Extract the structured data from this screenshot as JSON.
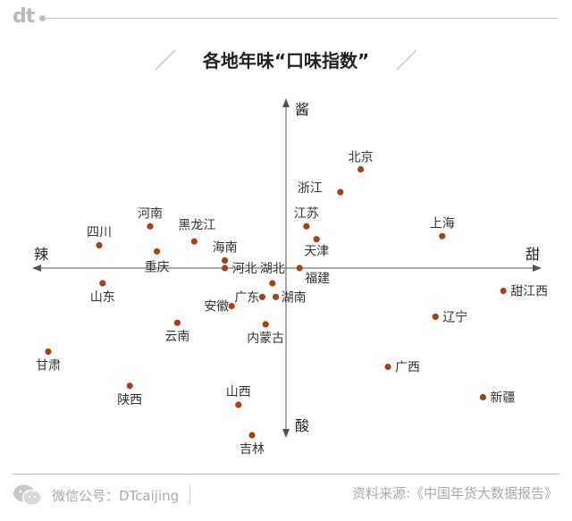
{
  "brand": "dt",
  "footer": {
    "left": "微信公号：DTcaijing",
    "right": "资料来源:《中国年货大数据报告》"
  },
  "chart_data": {
    "type": "scatter",
    "title": "各地年味“口味指数”",
    "axes": {
      "left": "辣",
      "right": "甜",
      "top": "酱",
      "bottom": "酸"
    },
    "grid": false,
    "points": [
      {
        "name": "北京",
        "x": 1.1,
        "y": 1.3
      },
      {
        "name": "浙江",
        "x": 0.8,
        "y": 1.0
      },
      {
        "name": "江苏",
        "x": 0.3,
        "y": 0.55
      },
      {
        "name": "天津",
        "x": 0.45,
        "y": 0.38
      },
      {
        "name": "上海",
        "x": 2.3,
        "y": 0.42
      },
      {
        "name": "甜江西",
        "x": 3.2,
        "y": -0.3
      },
      {
        "name": "辽宁",
        "x": 2.2,
        "y": -0.64
      },
      {
        "name": "广西",
        "x": 1.5,
        "y": -1.3
      },
      {
        "name": "新疆",
        "x": 2.9,
        "y": -1.7
      },
      {
        "name": "河南",
        "x": -2.0,
        "y": 0.55
      },
      {
        "name": "四川",
        "x": -2.75,
        "y": 0.3
      },
      {
        "name": "黑龙江",
        "x": -1.35,
        "y": 0.35
      },
      {
        "name": "重庆",
        "x": -1.9,
        "y": 0.22
      },
      {
        "name": "海南",
        "x": -0.9,
        "y": 0.1
      },
      {
        "name": "河北",
        "x": -0.9,
        "y": 0.0
      },
      {
        "name": "湖北",
        "x": -0.2,
        "y": -0.2
      },
      {
        "name": "福建",
        "x": 0.2,
        "y": 0.0
      },
      {
        "name": "山东",
        "x": -2.7,
        "y": -0.2
      },
      {
        "name": "广东",
        "x": -0.35,
        "y": -0.38
      },
      {
        "name": "湖南",
        "x": -0.15,
        "y": -0.38
      },
      {
        "name": "安徽",
        "x": -0.8,
        "y": -0.5
      },
      {
        "name": "云南",
        "x": -1.6,
        "y": -0.72
      },
      {
        "name": "内蒙古",
        "x": -0.3,
        "y": -0.74
      },
      {
        "name": "甘肃",
        "x": -3.5,
        "y": -1.1
      },
      {
        "name": "陕西",
        "x": -2.3,
        "y": -1.55
      },
      {
        "name": "山西",
        "x": -0.7,
        "y": -1.8
      },
      {
        "name": "吉林",
        "x": -0.5,
        "y": -2.2
      }
    ]
  }
}
